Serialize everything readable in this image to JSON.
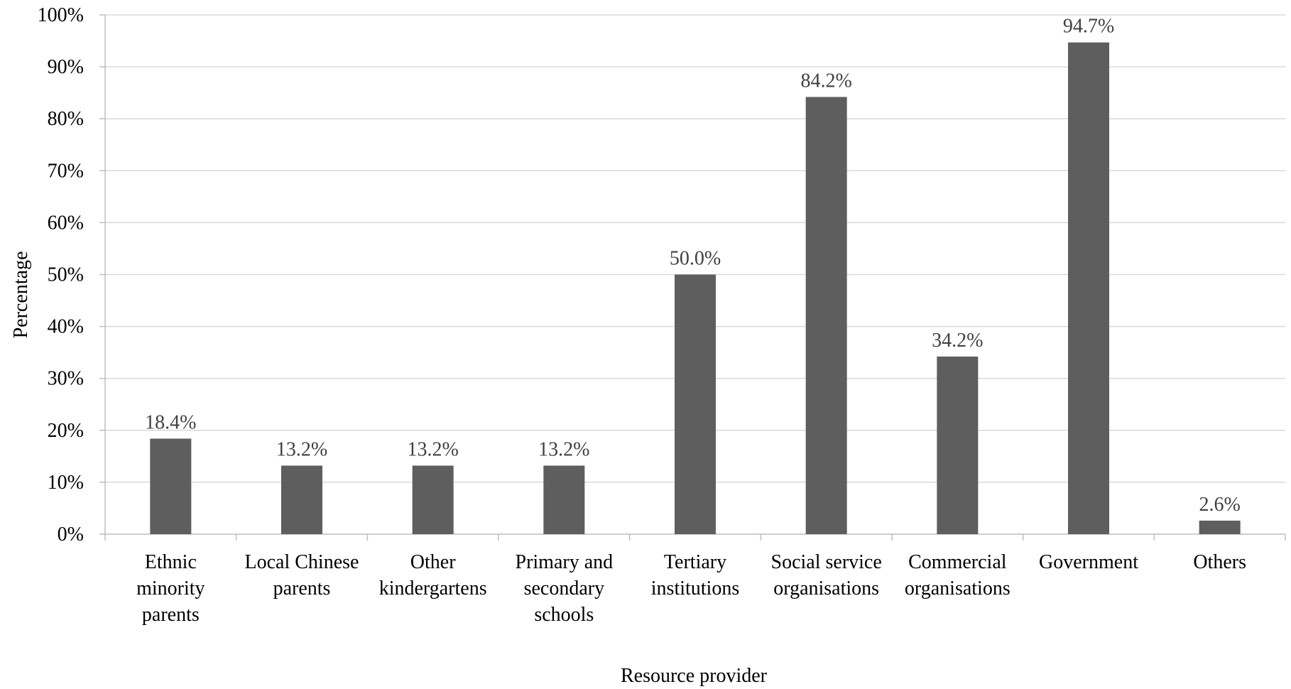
{
  "chart_data": {
    "type": "bar",
    "title": "",
    "xlabel": "Resource provider",
    "ylabel": "Percentage",
    "ylim": [
      0,
      100
    ],
    "y_ticks": [
      "0%",
      "10%",
      "20%",
      "30%",
      "40%",
      "50%",
      "60%",
      "70%",
      "80%",
      "90%",
      "100%"
    ],
    "grid": true,
    "legend": "none",
    "categories": [
      [
        "Ethnic",
        "minority",
        "parents"
      ],
      [
        "Local Chinese",
        "parents"
      ],
      [
        "Other",
        "kindergartens"
      ],
      [
        "Primary and",
        "secondary",
        "schools"
      ],
      [
        "Tertiary",
        "institutions"
      ],
      [
        "Social service",
        "organisations"
      ],
      [
        "Commercial",
        "organisations"
      ],
      [
        "Government"
      ],
      [
        "Others"
      ]
    ],
    "values": [
      18.4,
      13.2,
      13.2,
      13.2,
      50.0,
      84.2,
      34.2,
      94.7,
      2.6
    ],
    "data_labels": [
      "18.4%",
      "13.2%",
      "13.2%",
      "13.2%",
      "50.0%",
      "84.2%",
      "34.2%",
      "94.7%",
      "2.6%"
    ],
    "colors": {
      "bar": "#5e5e5e",
      "grid": "#d9d9d9",
      "axis": "#bfbfbf",
      "data_label": "#404040",
      "text": "#000000"
    }
  }
}
